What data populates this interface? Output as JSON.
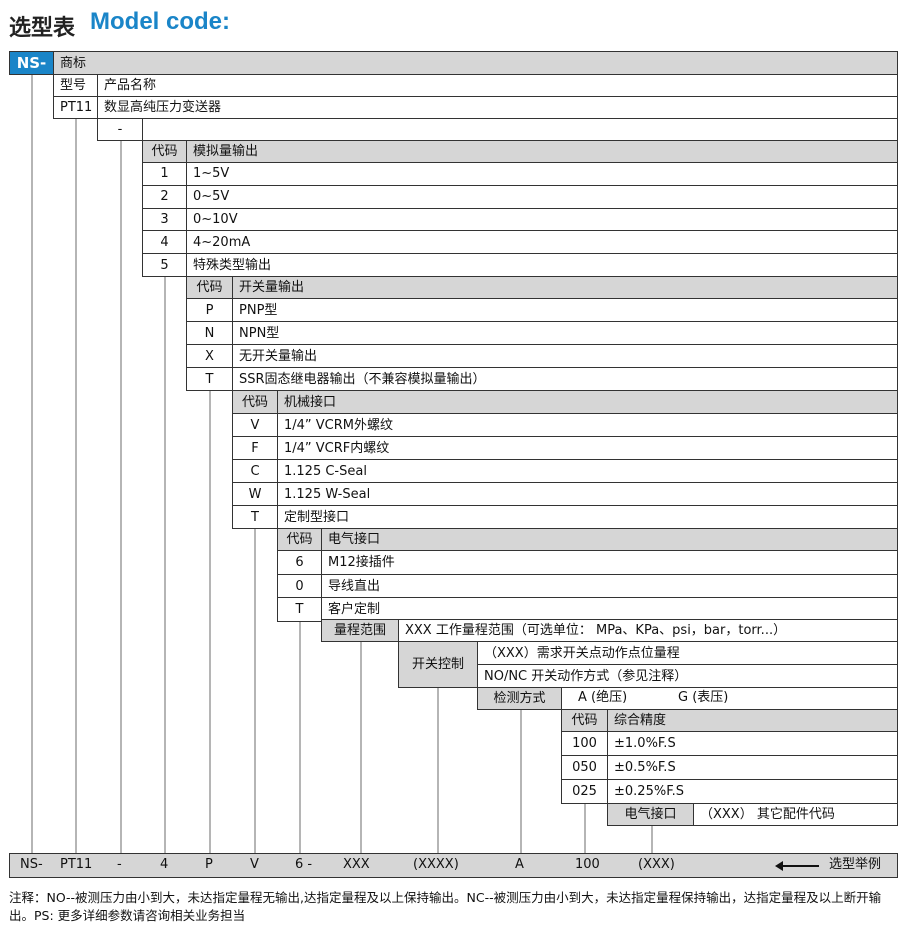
{
  "title": {
    "cn": "选型表",
    "en": "Model code:"
  },
  "colors": {
    "brand_blue": "#1a85c8",
    "header_gray": "#d6d6d6",
    "connector_gray": "#b5b5b5"
  },
  "brand": {
    "code": "NS-",
    "label": "商标"
  },
  "model": {
    "header": [
      "型号",
      "产品名称"
    ],
    "code": "PT11",
    "name": "数显高纯压力变送器"
  },
  "separator": "-",
  "analog": {
    "header": [
      "代码",
      "模拟量输出"
    ],
    "rows": [
      [
        "1",
        "1~5V"
      ],
      [
        "2",
        "0~5V"
      ],
      [
        "3",
        "0~10V"
      ],
      [
        "4",
        "4~20mA"
      ],
      [
        "5",
        "特殊类型输出"
      ]
    ]
  },
  "switch_output": {
    "header": [
      "代码",
      "开关量输出"
    ],
    "rows": [
      [
        "P",
        "PNP型"
      ],
      [
        "N",
        "NPN型"
      ],
      [
        "X",
        "无开关量输出"
      ],
      [
        "T",
        "SSR固态继电器输出（不兼容模拟量输出）"
      ]
    ]
  },
  "mechanical": {
    "header": [
      "代码",
      "机械接口"
    ],
    "rows": [
      [
        "V",
        "1/4” VCRM外螺纹"
      ],
      [
        "F",
        "1/4” VCRF内螺纹"
      ],
      [
        "C",
        "1.125 C-Seal"
      ],
      [
        "W",
        "1.125 W-Seal"
      ],
      [
        "T",
        "定制型接口"
      ]
    ]
  },
  "electrical": {
    "header": [
      "代码",
      "电气接口"
    ],
    "rows": [
      [
        "6",
        "M12接插件"
      ],
      [
        "0",
        "导线直出"
      ],
      [
        "T",
        "客户定制"
      ]
    ]
  },
  "range": {
    "label": "量程范围",
    "text": "XXX 工作量程范围（可选单位： MPa、KPa、psi，bar，torr...）"
  },
  "switch_control": {
    "label": "开关控制",
    "rows": [
      "（XXX）需求开关点动作点位量程",
      "NO/NC  开关动作方式（参见注释）"
    ]
  },
  "detection": {
    "label": "检测方式",
    "options": [
      "A (绝压)",
      "G (表压)"
    ]
  },
  "accuracy": {
    "header": [
      "代码",
      "综合精度"
    ],
    "rows": [
      [
        "100",
        "±1.0%F.S"
      ],
      [
        "050",
        "±0.5%F.S"
      ],
      [
        "025",
        "±0.25%F.S"
      ]
    ]
  },
  "accessory": {
    "label": "电气接口",
    "text": "（XXX）  其它配件代码"
  },
  "example": {
    "items": [
      "NS-",
      "PT11",
      "-",
      "4",
      "P",
      "V",
      "6 -",
      "XXX",
      "(XXXX)",
      "A",
      "100",
      "(XXX)"
    ],
    "label": "选型举例"
  },
  "note": "注释：NO--被测压力由小到大，未达指定量程无输出,达指定量程及以上保持输出。NC--被测压力由小到大，未达指定量程保持输出，达指定量程及以上断开输出。PS: 更多详细参数请咨询相关业务担当"
}
